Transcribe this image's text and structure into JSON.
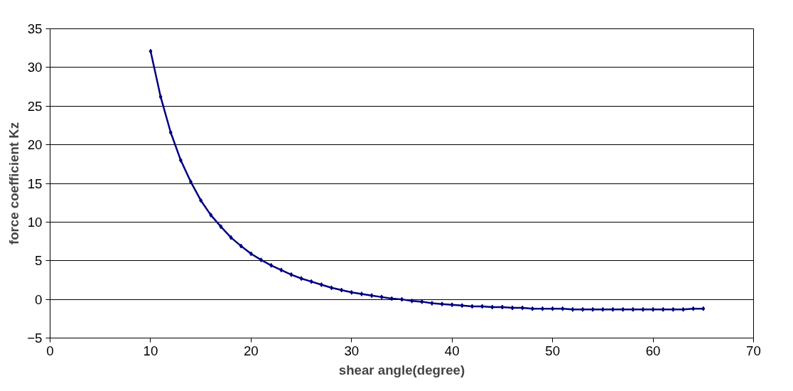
{
  "chart_data": {
    "type": "line",
    "xlabel": "shear angle(degree)",
    "ylabel": "force coefficient Kz",
    "x": [
      10,
      11,
      12,
      13,
      14,
      15,
      16,
      17,
      18,
      19,
      20,
      21,
      22,
      23,
      24,
      25,
      26,
      27,
      28,
      29,
      30,
      31,
      32,
      33,
      34,
      35,
      36,
      37,
      38,
      39,
      40,
      41,
      42,
      43,
      44,
      45,
      46,
      47,
      48,
      49,
      50,
      51,
      52,
      53,
      54,
      55,
      56,
      57,
      58,
      59,
      60,
      61,
      62,
      63,
      64,
      65
    ],
    "series": [
      {
        "color": "#000080",
        "values": [
          32.1,
          26.2,
          21.6,
          18.0,
          15.2,
          12.8,
          10.9,
          9.4,
          8.0,
          6.9,
          5.9,
          5.1,
          4.4,
          3.8,
          3.2,
          2.7,
          2.3,
          1.9,
          1.5,
          1.2,
          0.9,
          0.7,
          0.5,
          0.3,
          0.1,
          0.0,
          -0.2,
          -0.3,
          -0.5,
          -0.6,
          -0.7,
          -0.8,
          -0.9,
          -0.9,
          -1.0,
          -1.0,
          -1.1,
          -1.1,
          -1.2,
          -1.2,
          -1.2,
          -1.2,
          -1.3,
          -1.3,
          -1.3,
          -1.3,
          -1.3,
          -1.3,
          -1.3,
          -1.3,
          -1.3,
          -1.3,
          -1.3,
          -1.3,
          -1.2,
          -1.2
        ]
      }
    ],
    "xlim": [
      0,
      70
    ],
    "xticks": [
      0,
      10,
      20,
      30,
      40,
      50,
      60,
      70
    ],
    "ylim": [
      -5,
      35
    ],
    "yticks": [
      -5,
      0,
      5,
      10,
      15,
      20,
      25,
      30,
      35
    ],
    "grid": "y",
    "marker": "diamond",
    "line_style": "solid"
  }
}
